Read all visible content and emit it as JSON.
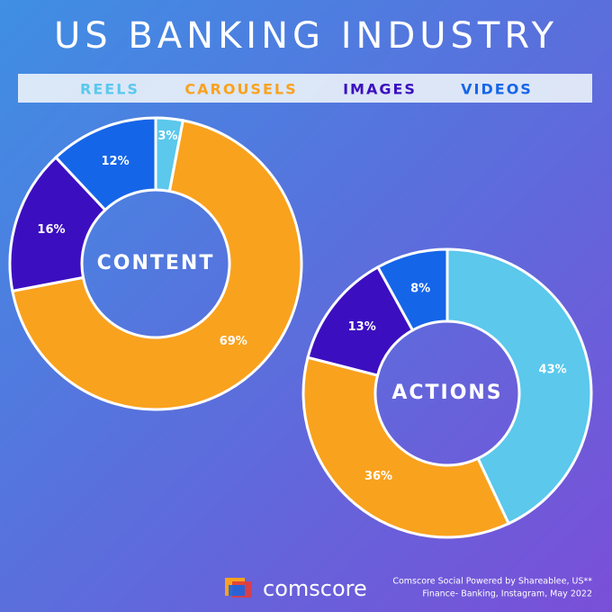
{
  "title": "US BANKING INDUSTRY",
  "chart_data": [
    {
      "type": "donut",
      "center_label": "CONTENT",
      "categories": [
        "REELS",
        "CAROUSELS",
        "IMAGES",
        "VIDEOS"
      ],
      "values": [
        3,
        69,
        16,
        12
      ],
      "value_labels": [
        "3%",
        "69%",
        "16%",
        "12%"
      ],
      "colors": [
        "#5bc8ec",
        "#f9a21e",
        "#3b0fc0",
        "#1565e8"
      ]
    },
    {
      "type": "donut",
      "center_label": "ACTIONS",
      "categories": [
        "REELS",
        "CAROUSELS",
        "IMAGES",
        "VIDEOS"
      ],
      "values": [
        43,
        36,
        13,
        8
      ],
      "value_labels": [
        "43%",
        "36%",
        "13%",
        "8%"
      ],
      "colors": [
        "#5bc8ec",
        "#f9a21e",
        "#3b0fc0",
        "#1565e8"
      ]
    }
  ],
  "footer": {
    "brand": "comscore",
    "source": [
      "Comscore Social Powered by Shareablee, US**",
      "Finance- Banking, Instagram, May 2022"
    ]
  }
}
